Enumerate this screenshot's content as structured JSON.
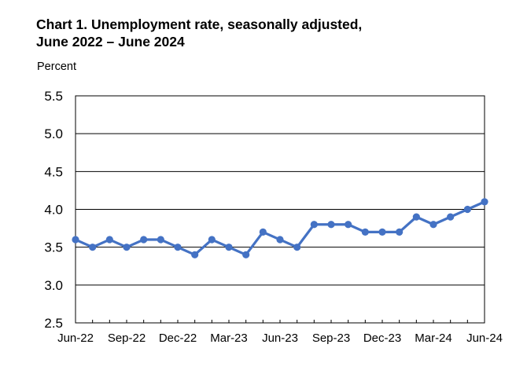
{
  "chart_data": {
    "type": "line",
    "title_line1": "Chart 1. Unemployment rate, seasonally adjusted,",
    "title_line2": "June 2022 – June 2024",
    "ylabel": "Percent",
    "ylim": [
      2.5,
      5.5
    ],
    "yticks": [
      "2.5",
      "3.0",
      "3.5",
      "4.0",
      "4.5",
      "5.0",
      "5.5"
    ],
    "grid": true,
    "x_tick_labels": [
      "Jun-22",
      "Sep-22",
      "Dec-22",
      "Mar-23",
      "Jun-23",
      "Sep-23",
      "Dec-23",
      "Mar-24",
      "Jun-24"
    ],
    "x": [
      "Jun-22",
      "Jul-22",
      "Aug-22",
      "Sep-22",
      "Oct-22",
      "Nov-22",
      "Dec-22",
      "Jan-23",
      "Feb-23",
      "Mar-23",
      "Apr-23",
      "May-23",
      "Jun-23",
      "Jul-23",
      "Aug-23",
      "Sep-23",
      "Oct-23",
      "Nov-23",
      "Dec-23",
      "Jan-24",
      "Feb-24",
      "Mar-24",
      "Apr-24",
      "May-24",
      "Jun-24"
    ],
    "series": [
      {
        "values": [
          3.6,
          3.5,
          3.6,
          3.5,
          3.6,
          3.6,
          3.5,
          3.4,
          3.6,
          3.5,
          3.4,
          3.7,
          3.6,
          3.5,
          3.8,
          3.8,
          3.8,
          3.7,
          3.7,
          3.7,
          3.9,
          3.8,
          3.9,
          4.0,
          4.1
        ],
        "color": "#4472c4"
      }
    ]
  }
}
